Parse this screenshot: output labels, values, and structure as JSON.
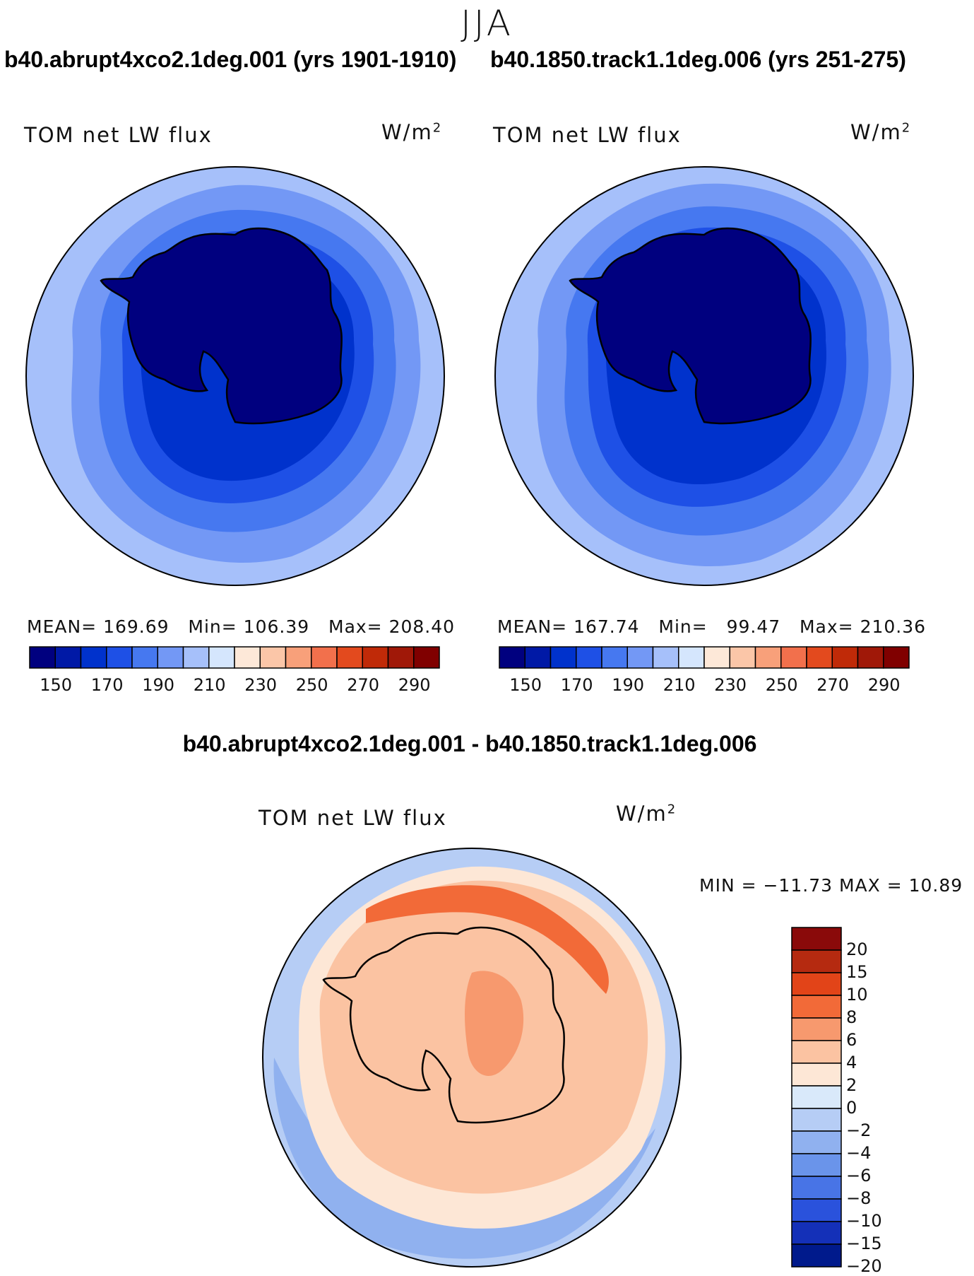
{
  "season_title": "JJA",
  "panels": [
    {
      "case_title": "b40.abrupt4xco2.1deg.001 (yrs 1901-1910)",
      "variable_label": "TOM net LW flux",
      "units": "W/m",
      "units_superscript": "2",
      "stats": {
        "mean_label": "MEAN=",
        "mean_value": "169.69",
        "min_label": "Min=",
        "min_value": "106.39",
        "max_label": "Max=",
        "max_value": "208.40"
      }
    },
    {
      "case_title": "b40.1850.track1.1deg.006 (yrs 251-275)",
      "variable_label": "TOM net LW flux",
      "units": "W/m",
      "units_superscript": "2",
      "stats": {
        "mean_label": "MEAN=",
        "mean_value": "167.74",
        "min_label": "Min=",
        "min_value": "99.47",
        "max_label": "Max=",
        "max_value": "210.36"
      }
    }
  ],
  "abs_colorbar": {
    "colors": [
      "#00007f",
      "#0019a6",
      "#0032cc",
      "#1e50e6",
      "#4678f0",
      "#7398f5",
      "#a6c0fa",
      "#d5e6fd",
      "#fde8d8",
      "#fbc6a8",
      "#f8a07a",
      "#f2704c",
      "#e34a1e",
      "#c02a08",
      "#a01808",
      "#800000"
    ],
    "tick_labels": [
      "150",
      "170",
      "190",
      "210",
      "230",
      "250",
      "270",
      "290"
    ]
  },
  "diff_panel": {
    "title": "b40.abrupt4xco2.1deg.001 - b40.1850.track1.1deg.006",
    "variable_label": "TOM net LW flux",
    "units": "W/m",
    "units_superscript": "2",
    "minmax_text": "MIN = −11.73 MAX =   10.89",
    "colorbar": {
      "colors": [
        "#8a0a0a",
        "#b52a10",
        "#e24418",
        "#f26a38",
        "#f7996e",
        "#fbc3a2",
        "#fde7d6",
        "#d9e9fa",
        "#b6cdf5",
        "#90b1ef",
        "#6a94ea",
        "#4874e6",
        "#2a52dc",
        "#1430b8",
        "#001a8c"
      ],
      "tick_labels": [
        "20",
        "15",
        "10",
        "8",
        "6",
        "4",
        "2",
        "0",
        "−2",
        "−4",
        "−6",
        "−8",
        "−10",
        "−15",
        "−20"
      ]
    }
  },
  "map_colors": {
    "abs_outer": "#a6c0fa",
    "abs_mid1": "#7398f5",
    "abs_mid2": "#4678f0",
    "abs_mid3": "#1e50e6",
    "abs_inner": "#0032cc",
    "abs_core": "#00007f",
    "diff_blue_light": "#d9e9fa",
    "diff_blue_mid": "#b6cdf5",
    "diff_blue": "#90b1ef",
    "diff_blue_dark": "#6a94ea",
    "diff_red_light": "#fde7d6",
    "diff_red_mid": "#fbc3a2",
    "diff_red": "#f7996e",
    "diff_red_dark": "#f26a38",
    "coastline": "#000000"
  }
}
